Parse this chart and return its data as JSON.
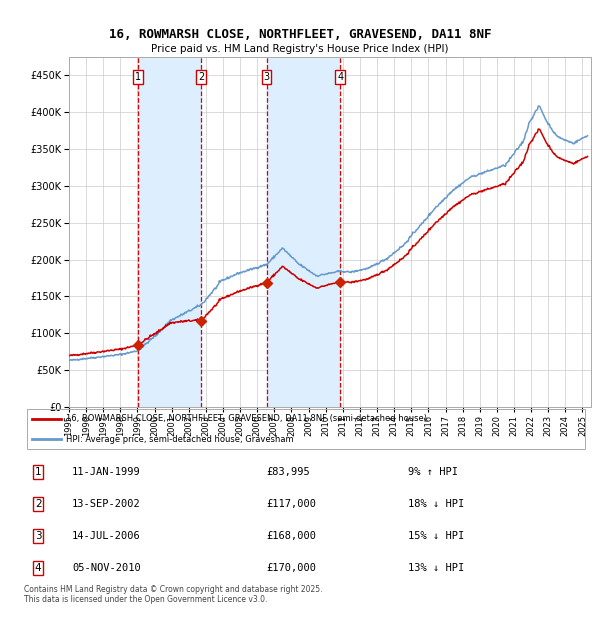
{
  "title": "16, ROWMARSH CLOSE, NORTHFLEET, GRAVESEND, DA11 8NF",
  "subtitle": "Price paid vs. HM Land Registry's House Price Index (HPI)",
  "legend_label_red": "16, ROWMARSH CLOSE, NORTHFLEET, GRAVESEND, DA11 8NF (semi-detached house)",
  "legend_label_blue": "HPI: Average price, semi-detached house, Gravesham",
  "footer": "Contains HM Land Registry data © Crown copyright and database right 2025.\nThis data is licensed under the Open Government Licence v3.0.",
  "transactions": [
    {
      "num": 1,
      "date": "11-JAN-1999",
      "price": 83995,
      "pct": "9%",
      "dir": "↑"
    },
    {
      "num": 2,
      "date": "13-SEP-2002",
      "price": 117000,
      "pct": "18%",
      "dir": "↓"
    },
    {
      "num": 3,
      "date": "14-JUL-2006",
      "price": 168000,
      "pct": "15%",
      "dir": "↓"
    },
    {
      "num": 4,
      "date": "05-NOV-2010",
      "price": 170000,
      "pct": "13%",
      "dir": "↓"
    }
  ],
  "transaction_dates_decimal": [
    1999.03,
    2002.71,
    2006.54,
    2010.85
  ],
  "sale_prices": [
    83995,
    117000,
    168000,
    170000
  ],
  "ylim": [
    0,
    475000
  ],
  "yticks": [
    0,
    50000,
    100000,
    150000,
    200000,
    250000,
    300000,
    350000,
    400000,
    450000
  ],
  "ytick_labels": [
    "£0",
    "£50K",
    "£100K",
    "£150K",
    "£200K",
    "£250K",
    "£300K",
    "£350K",
    "£400K",
    "£450K"
  ],
  "xlim_start": 1995.0,
  "xlim_end": 2025.5,
  "background_color": "#ffffff",
  "plot_bg_color": "#ffffff",
  "grid_color": "#cccccc",
  "red_color": "#cc0000",
  "blue_color": "#6699cc",
  "vline_color": "#dd0000",
  "shade_color": "#ddeeff",
  "marker_color": "#cc2200"
}
